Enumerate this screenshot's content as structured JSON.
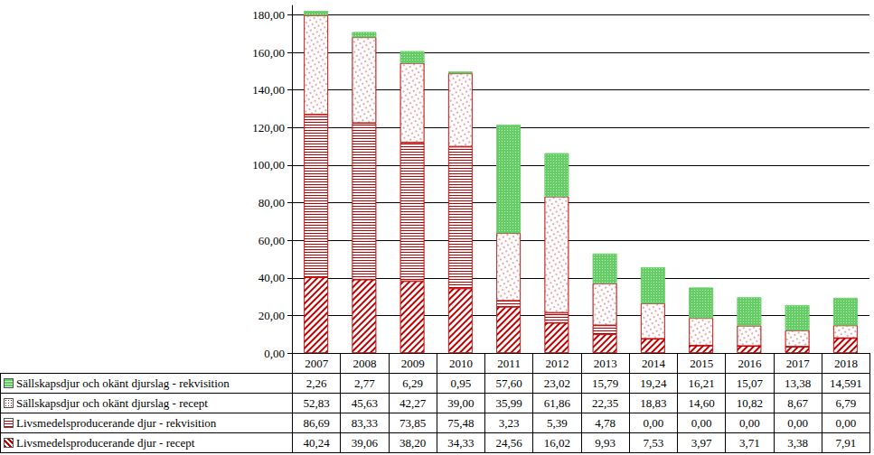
{
  "chart_data": {
    "type": "bar",
    "stacked": true,
    "grid": true,
    "tick_labels": "y",
    "categories": [
      "2007",
      "2008",
      "2009",
      "2010",
      "2011",
      "2012",
      "2013",
      "2014",
      "2015",
      "2016",
      "2017",
      "2018"
    ],
    "ylim": [
      0,
      185
    ],
    "yticks": [
      {
        "value": 0,
        "label": "0,00"
      },
      {
        "value": 20,
        "label": "20,00"
      },
      {
        "value": 40,
        "label": "40,00"
      },
      {
        "value": 60,
        "label": "60,00"
      },
      {
        "value": 80,
        "label": "80,00"
      },
      {
        "value": 100,
        "label": "100,00"
      },
      {
        "value": 120,
        "label": "120,00"
      },
      {
        "value": 140,
        "label": "140,00"
      },
      {
        "value": 160,
        "label": "160,00"
      },
      {
        "value": 180,
        "label": "180,00"
      }
    ],
    "series": [
      {
        "name": "Livsmedelsproducerande djur - recept",
        "color": "#c00000",
        "values": [
          40.24,
          39.06,
          38.2,
          34.33,
          24.56,
          16.02,
          9.93,
          7.53,
          3.97,
          3.71,
          3.38,
          7.91
        ],
        "value_labels": [
          "40,24",
          "39,06",
          "38,20",
          "34,33",
          "24,56",
          "16,02",
          "9,93",
          "7,53",
          "3,97",
          "3,71",
          "3,38",
          "7,91"
        ]
      },
      {
        "name": "Livsmedelsproducerande djur - rekvisition",
        "color": "#c00000",
        "values": [
          86.69,
          83.33,
          73.85,
          75.48,
          3.23,
          5.39,
          4.78,
          0.0,
          0.0,
          0.0,
          0.0,
          0.0
        ],
        "value_labels": [
          "86,69",
          "83,33",
          "73,85",
          "75,48",
          "3,23",
          "5,39",
          "4,78",
          "0,00",
          "0,00",
          "0,00",
          "0,00",
          "0,00"
        ]
      },
      {
        "name": "Sällskapsdjur och okänt djurslag - recept",
        "color": "#c00000",
        "values": [
          52.83,
          45.63,
          42.27,
          39.0,
          35.99,
          61.86,
          22.35,
          18.83,
          14.6,
          10.82,
          8.67,
          6.79
        ],
        "value_labels": [
          "52,83",
          "45,63",
          "42,27",
          "39,00",
          "35,99",
          "61,86",
          "22,35",
          "18,83",
          "14,60",
          "10,82",
          "8,67",
          "6,79"
        ]
      },
      {
        "name": "Sällskapsdjur och okänt djurslag - rekvisition",
        "color": "#66cc66",
        "values": [
          2.26,
          2.77,
          6.29,
          0.95,
          57.6,
          23.02,
          15.79,
          19.24,
          16.21,
          15.07,
          13.38,
          14.591
        ],
        "value_labels": [
          "2,26",
          "2,77",
          "6,29",
          "0,95",
          "57,60",
          "23,02",
          "15,79",
          "19,24",
          "16,21",
          "15,07",
          "13,38",
          "14,591"
        ]
      }
    ]
  }
}
